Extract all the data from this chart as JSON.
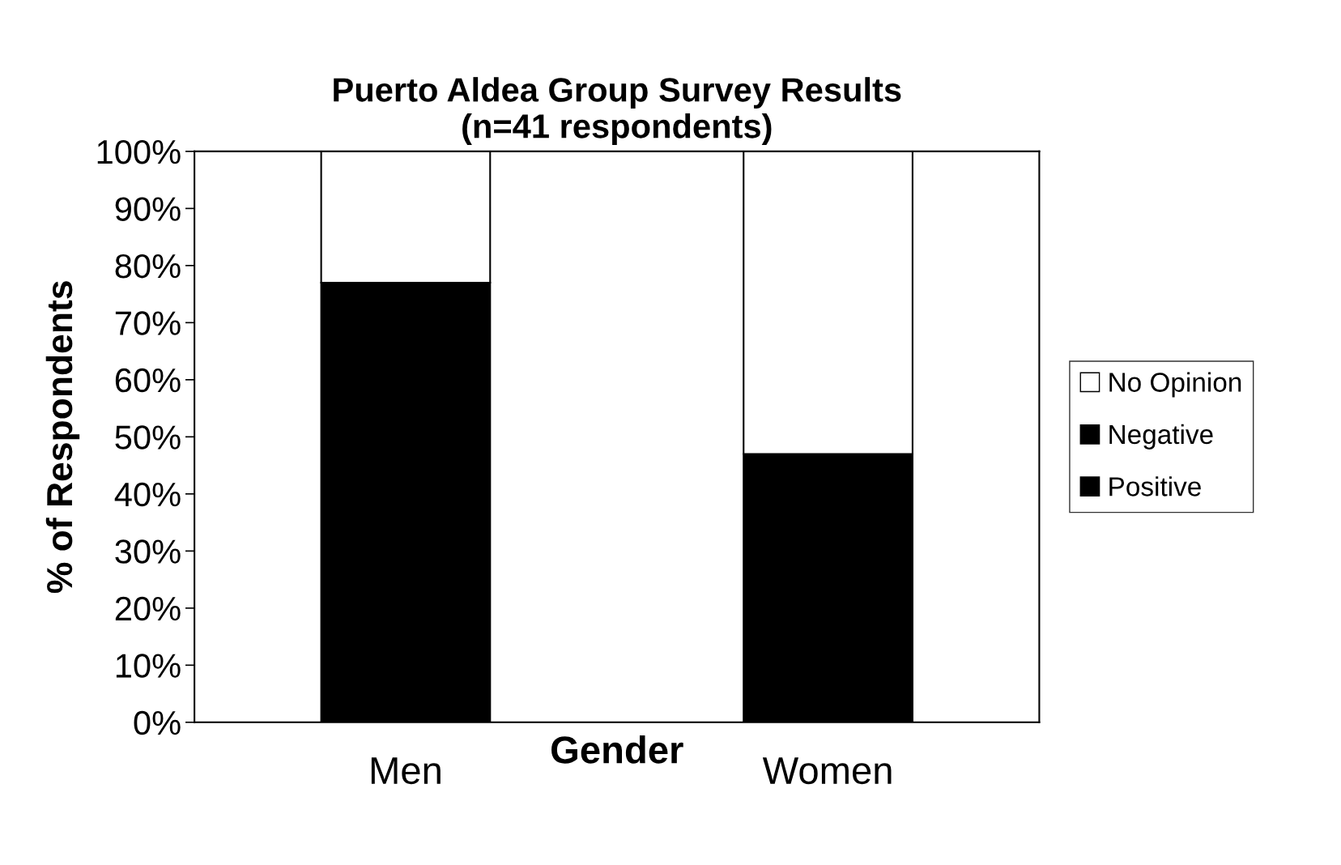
{
  "chart_data": {
    "type": "bar",
    "stacked": true,
    "title": "Puerto Aldea Group Survey Results\n(n=41 respondents)",
    "xlabel": "Gender",
    "ylabel": "% of Respondents",
    "categories": [
      "Men",
      "Women"
    ],
    "series": [
      {
        "name": "Positive",
        "color": "#000000",
        "values": [
          77,
          47
        ]
      },
      {
        "name": "Negative",
        "color": "#000000",
        "values": [
          null,
          null
        ]
      },
      {
        "name": "No Opinion",
        "color": "#ffffff",
        "values": [
          23,
          53
        ]
      }
    ],
    "ylim": [
      0,
      100
    ],
    "yticks": [
      {
        "value": 0,
        "label": "0%"
      },
      {
        "value": 10,
        "label": "10%"
      },
      {
        "value": 20,
        "label": "20%"
      },
      {
        "value": 30,
        "label": "30%"
      },
      {
        "value": 40,
        "label": "40%"
      },
      {
        "value": 50,
        "label": "50%"
      },
      {
        "value": 60,
        "label": "60%"
      },
      {
        "value": 70,
        "label": "70%"
      },
      {
        "value": 80,
        "label": "80%"
      },
      {
        "value": 90,
        "label": "90%"
      },
      {
        "value": 100,
        "label": "100%"
      }
    ],
    "grid": false,
    "legend": "right"
  }
}
